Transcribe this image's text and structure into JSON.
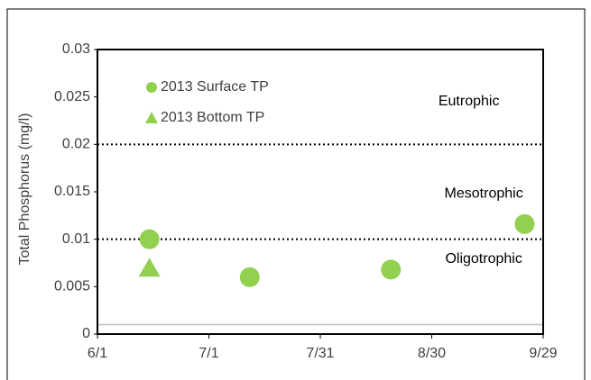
{
  "chart_data": {
    "type": "scatter",
    "y_label": "Total Phosphorus (mg/l)",
    "xlim": [
      0,
      120
    ],
    "xticks": [
      {
        "value": 0,
        "label": "6/1"
      },
      {
        "value": 30,
        "label": "7/1"
      },
      {
        "value": 60,
        "label": "7/31"
      },
      {
        "value": 90,
        "label": "8/30"
      },
      {
        "value": 120,
        "label": "9/29"
      }
    ],
    "ylim": [
      0,
      0.03
    ],
    "yticks": [
      0,
      0.005,
      0.01,
      0.015,
      0.02,
      0.025,
      0.03
    ],
    "series": [
      {
        "name": "2013 Surface TP",
        "color": "#92d050",
        "marker": "circle",
        "x": [
          14,
          41,
          79,
          115
        ],
        "values": [
          0.01,
          0.006,
          0.0068,
          0.0116
        ]
      },
      {
        "name": "2013 Bottom TP",
        "color": "#92d050",
        "marker": "triangle",
        "x": [
          14
        ],
        "values": [
          0.007
        ]
      }
    ],
    "reference_lines": [
      {
        "value": 0.02,
        "style": "dotted",
        "color": "#000000"
      },
      {
        "value": 0.01,
        "style": "dotted",
        "color": "#000000"
      },
      {
        "value": 0.001,
        "style": "solid",
        "color": "#bfbfbf"
      }
    ],
    "annotations": [
      {
        "text": "Eutrophic",
        "x": 100,
        "y": 0.0245
      },
      {
        "text": "Mesotrophic",
        "x": 104,
        "y": 0.0148
      },
      {
        "text": "Oligotrophic",
        "x": 104,
        "y": 0.0079
      }
    ],
    "legend": "upper left"
  }
}
